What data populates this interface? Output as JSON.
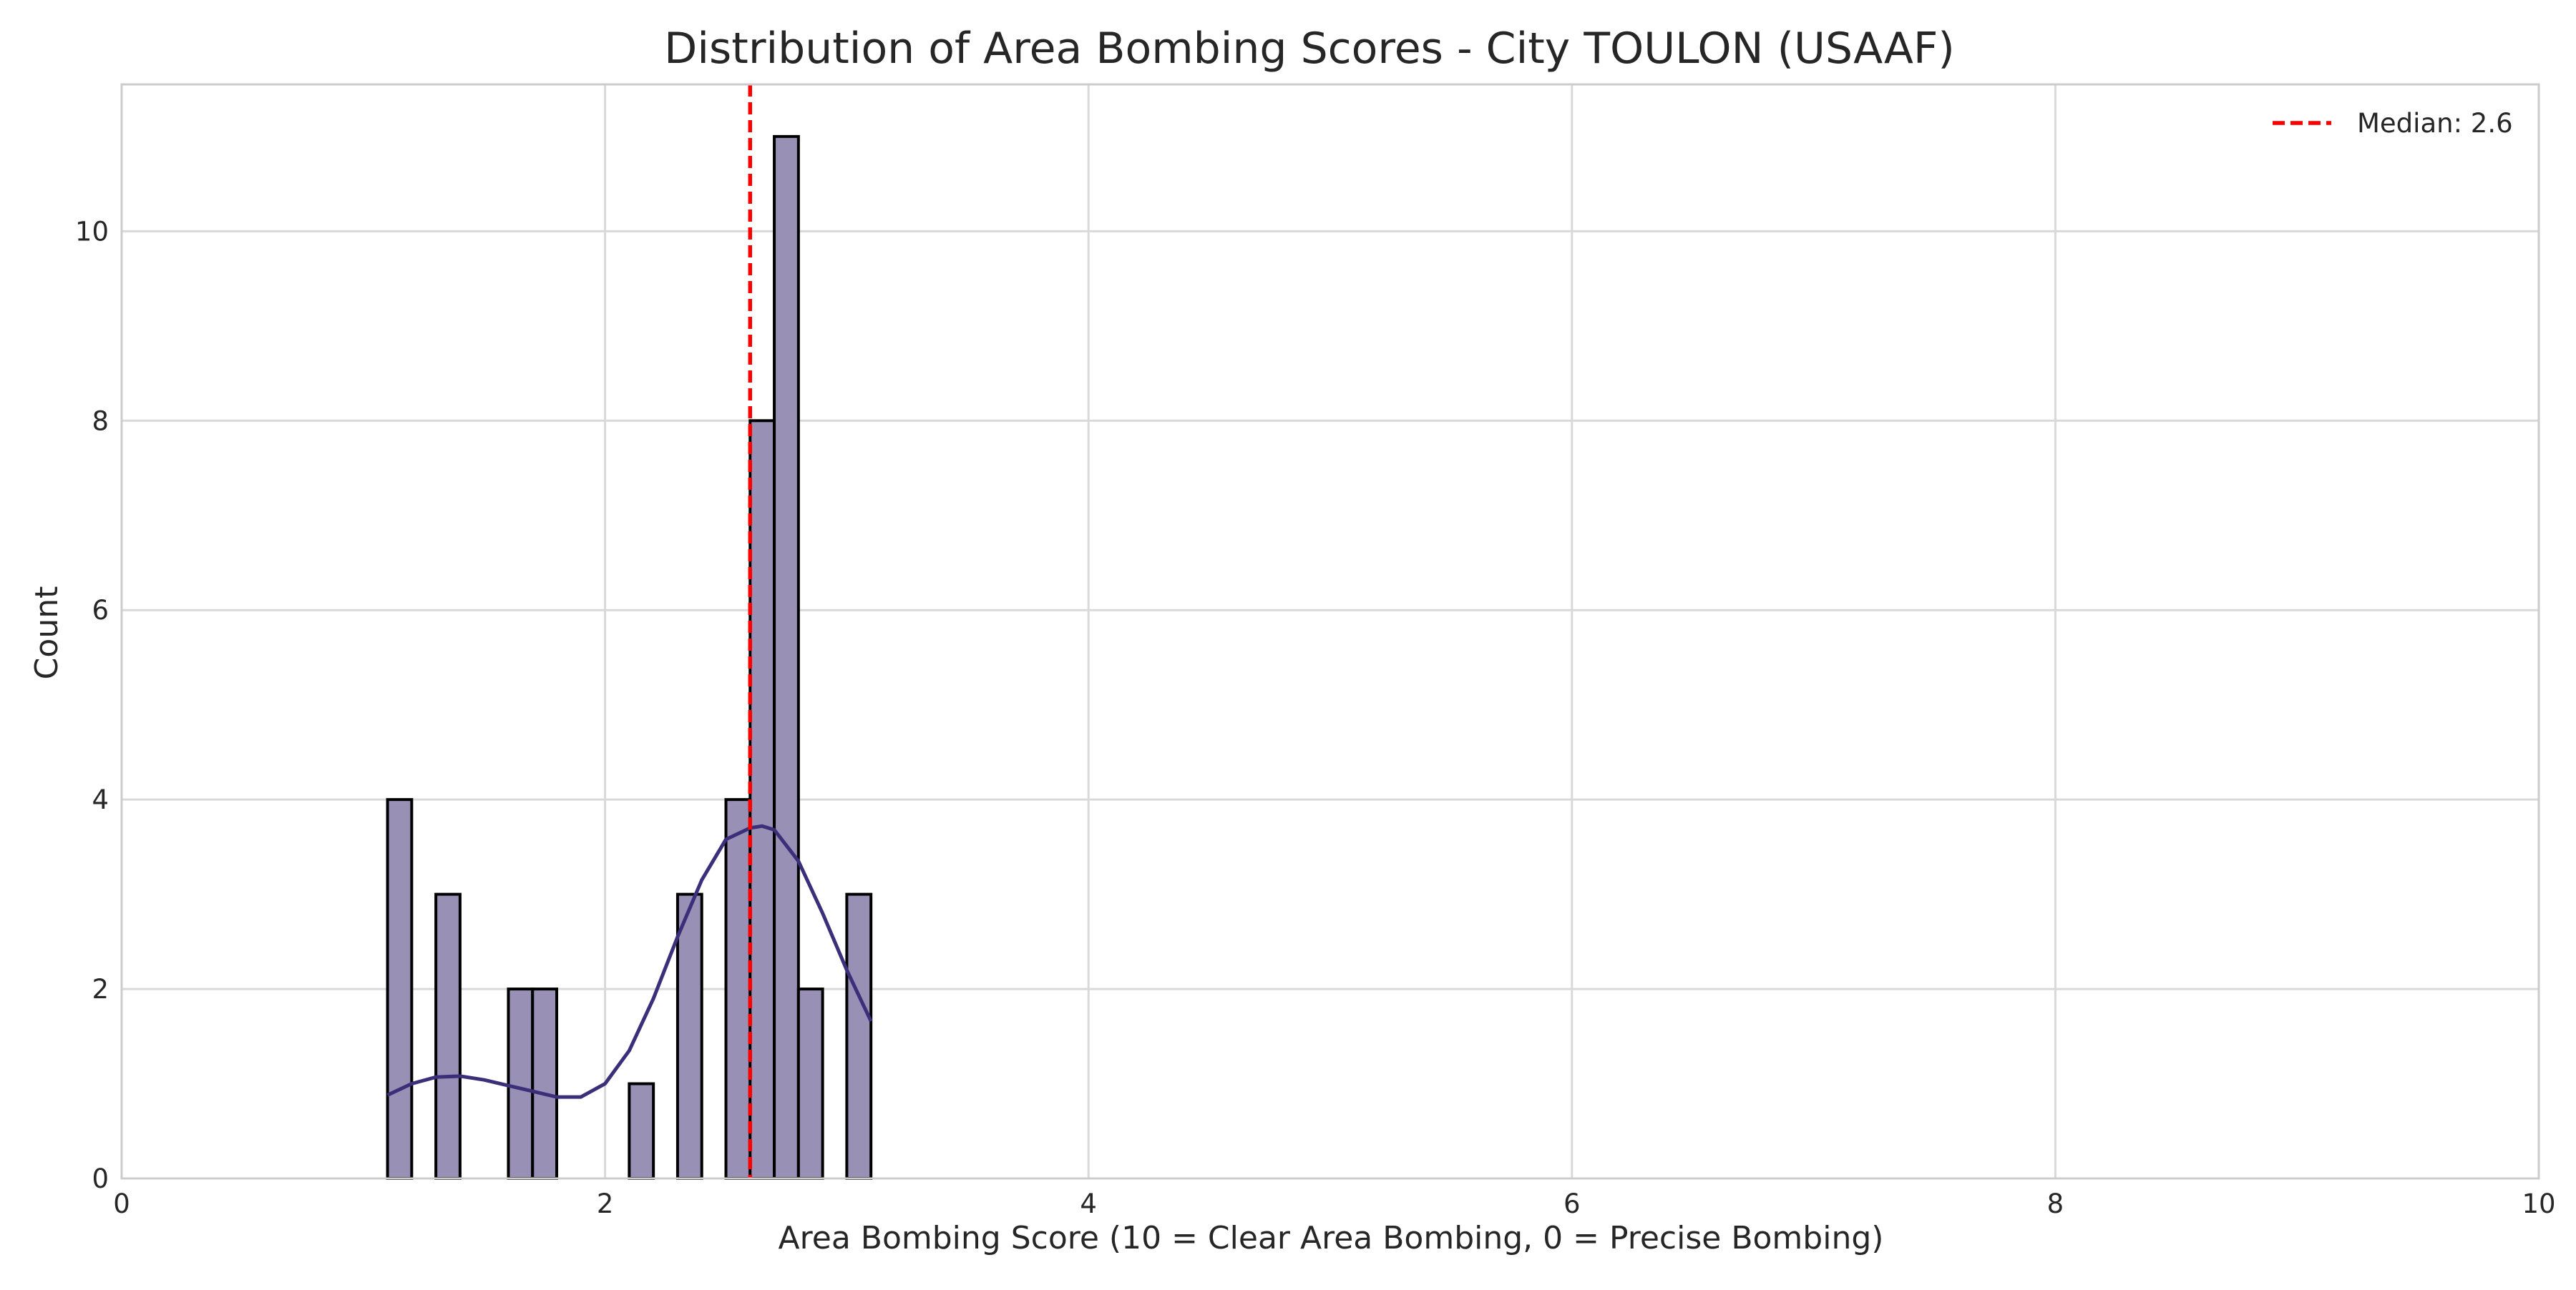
{
  "chart_data": {
    "type": "bar",
    "title": "Distribution of Area Bombing Scores - City TOULON (USAAF)",
    "xlabel": "Area Bombing Score (10 = Clear Area Bombing, 0 = Precise Bombing)",
    "ylabel": "Count",
    "xlim": [
      0,
      10
    ],
    "ylim": [
      0,
      11.55
    ],
    "xticks": [
      "0",
      "2",
      "4",
      "6",
      "8",
      "10"
    ],
    "yticks": [
      "0",
      "2",
      "4",
      "6",
      "8",
      "10"
    ],
    "grid": true,
    "legend_position": "top-right",
    "bins": [
      {
        "x0": 1.1,
        "x1": 1.2,
        "count": 4
      },
      {
        "x0": 1.3,
        "x1": 1.4,
        "count": 3
      },
      {
        "x0": 1.6,
        "x1": 1.7,
        "count": 2
      },
      {
        "x0": 1.7,
        "x1": 1.8,
        "count": 2
      },
      {
        "x0": 2.1,
        "x1": 2.2,
        "count": 1
      },
      {
        "x0": 2.3,
        "x1": 2.4,
        "count": 3
      },
      {
        "x0": 2.5,
        "x1": 2.6,
        "count": 4
      },
      {
        "x0": 2.6,
        "x1": 2.7,
        "count": 8
      },
      {
        "x0": 2.7,
        "x1": 2.8,
        "count": 11
      },
      {
        "x0": 2.8,
        "x1": 2.9,
        "count": 2
      },
      {
        "x0": 3.0,
        "x1": 3.1,
        "count": 3
      }
    ],
    "kde_curve": {
      "x": [
        1.1,
        1.2,
        1.3,
        1.4,
        1.5,
        1.6,
        1.7,
        1.8,
        1.9,
        2.0,
        2.1,
        2.2,
        2.3,
        2.4,
        2.5,
        2.6,
        2.65,
        2.7,
        2.8,
        2.9,
        3.0,
        3.1
      ],
      "y": [
        0.88,
        1.0,
        1.07,
        1.08,
        1.04,
        0.98,
        0.92,
        0.86,
        0.86,
        1.0,
        1.35,
        1.9,
        2.55,
        3.15,
        3.58,
        3.7,
        3.72,
        3.68,
        3.35,
        2.8,
        2.2,
        1.66
      ]
    },
    "median": {
      "value": 2.6,
      "label": "Median: 2.6",
      "color": "#ff0000"
    },
    "colors": {
      "bar_fill": "#9890b5",
      "bar_edge": "#000000",
      "kde_line": "#3b2f7a",
      "grid": "#d9d9d9",
      "axes_edge": "#cccccc"
    }
  }
}
